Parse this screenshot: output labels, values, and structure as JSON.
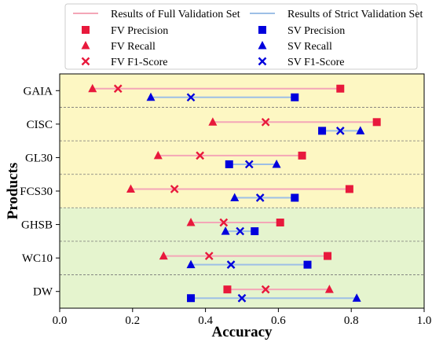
{
  "chart_data": {
    "type": "dumbbell",
    "xlabel": "Accuracy",
    "ylabel": "Products",
    "xlim": [
      0.0,
      1.0
    ],
    "x_ticks": [
      "0.0",
      "0.2",
      "0.4",
      "0.6",
      "0.8",
      "1.0"
    ],
    "grid": false,
    "legend_position": "top",
    "categories": [
      "GAIA",
      "CISC",
      "GL30",
      "FCS30",
      "GHSB",
      "WC10",
      "DW"
    ],
    "series": [
      {
        "name": "FV",
        "range_label": "Results of Full Validation Set",
        "line_color": "#f4a6b7",
        "marker_color": "#e8193c",
        "precision": [
          0.77,
          0.87,
          0.665,
          0.795,
          0.605,
          0.735,
          0.46
        ],
        "recall": [
          0.09,
          0.42,
          0.27,
          0.195,
          0.36,
          0.285,
          0.74
        ],
        "f1": [
          0.16,
          0.565,
          0.385,
          0.315,
          0.45,
          0.41,
          0.565
        ]
      },
      {
        "name": "SV",
        "range_label": "Results of Strict Validation Set",
        "line_color": "#9dbfe6",
        "marker_color": "#0000dd",
        "precision": [
          0.645,
          0.72,
          0.465,
          0.645,
          0.535,
          0.68,
          0.36
        ],
        "recall": [
          0.25,
          0.825,
          0.595,
          0.48,
          0.455,
          0.36,
          0.815
        ],
        "f1": [
          0.36,
          0.77,
          0.52,
          0.55,
          0.495,
          0.47,
          0.5
        ]
      }
    ],
    "legend": [
      "Results of Full Validation Set",
      "Results of Strict Validation Set",
      "FV Precision",
      "SV Precision",
      "FV Recall",
      "SV Recall",
      "FV F1-Score",
      "SV F1-Score"
    ],
    "backgrounds": [
      {
        "categories": [
          "GAIA",
          "CISC",
          "GL30",
          "FCS30"
        ],
        "color": "#fdf7c3"
      },
      {
        "categories": [
          "GHSB",
          "WC10",
          "DW"
        ],
        "color": "#e5f4ce"
      }
    ]
  }
}
